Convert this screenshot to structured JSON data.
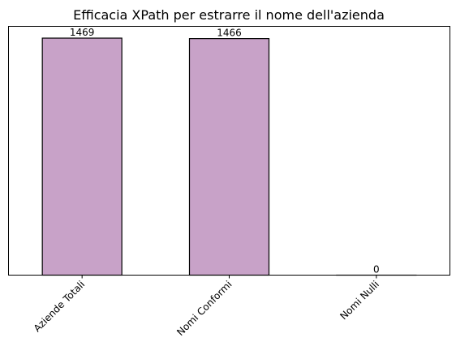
{
  "chart_data": {
    "type": "bar",
    "title": "Efficacia XPath per estrarre il nome dell'azienda",
    "categories": [
      "Aziende Totali",
      "Nomi Conformi",
      "Nomi Nulli"
    ],
    "values": [
      1469,
      1466,
      0
    ],
    "data_labels": [
      "1469",
      "1466",
      "0"
    ],
    "xlabel": "",
    "ylabel": "",
    "ylim": [
      0,
      1542
    ],
    "y_axis_visible": false,
    "grid": false,
    "bar_color": "#c8a2c8",
    "bar_edge_color": "#000000",
    "x_tick_rotation": 45
  }
}
